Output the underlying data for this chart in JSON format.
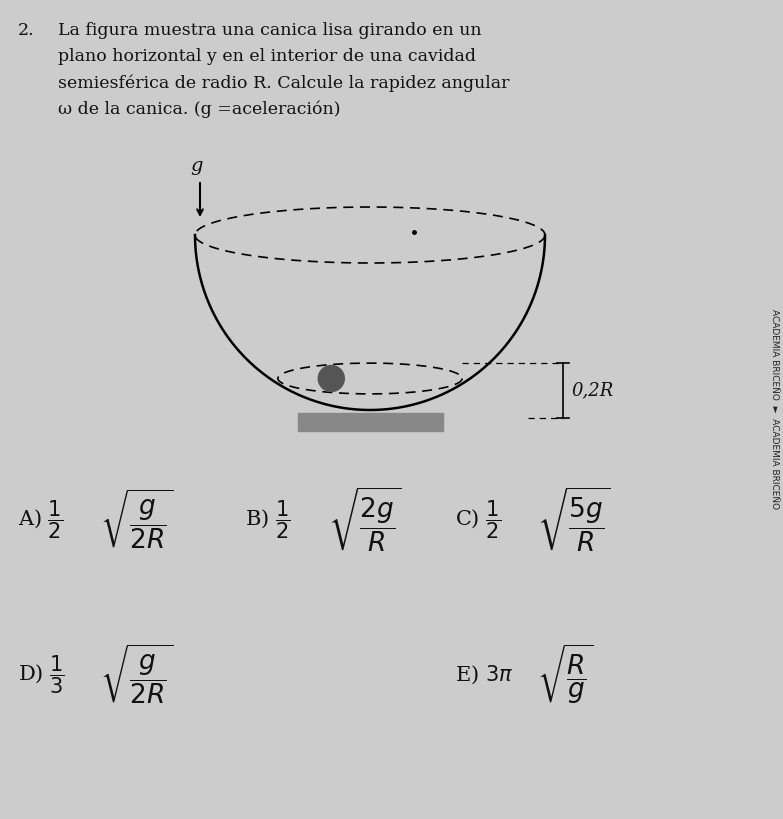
{
  "bg_color": "#cccccc",
  "title_num": "2.",
  "problem_text_lines": [
    "La figura muestra una canica lisa girando en un",
    "plano horizontal y en el interior de una cavidad",
    "semiesférica de radio R. Calcule la rapidez angular",
    "ω de la canica. (g =aceleración)"
  ],
  "font_size_problem": 12.5,
  "font_size_answer": 15,
  "text_color": "#111111",
  "platform_color": "#888888",
  "label_02R": "0,2R",
  "g_label": "g"
}
